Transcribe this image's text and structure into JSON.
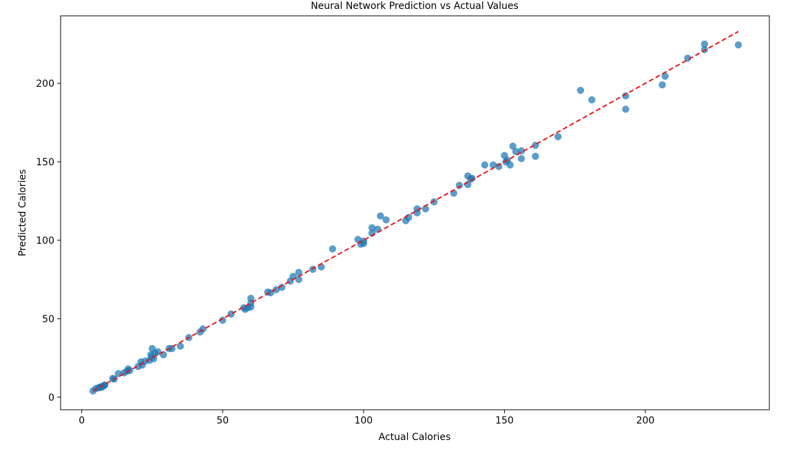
{
  "chart_data": {
    "type": "scatter",
    "title": "Neural Network Prediction vs Actual Values",
    "xlabel": "Actual Calories",
    "ylabel": "Predicted Calories",
    "xlim": [
      -7.5,
      244
    ],
    "ylim": [
      -8,
      243
    ],
    "xticks": [
      0,
      50,
      100,
      150,
      200
    ],
    "yticks": [
      0,
      50,
      100,
      150,
      200
    ],
    "grid": false,
    "colors": {
      "points": "#1f77b4",
      "ideal_line": "#e8161b"
    },
    "reference_line": {
      "style": "dashed",
      "from": [
        4,
        4
      ],
      "to": [
        233,
        233
      ]
    },
    "points": [
      [
        4,
        4
      ],
      [
        5,
        5.5
      ],
      [
        6,
        6
      ],
      [
        6.5,
        6.5
      ],
      [
        7,
        6.3
      ],
      [
        7.5,
        7
      ],
      [
        8,
        7.5
      ],
      [
        8.2,
        7.8
      ],
      [
        11,
        12
      ],
      [
        11.5,
        11.5
      ],
      [
        13,
        15
      ],
      [
        15,
        15.5
      ],
      [
        16,
        16.5
      ],
      [
        16.5,
        18
      ],
      [
        17,
        17
      ],
      [
        20,
        19.5
      ],
      [
        21,
        22.5
      ],
      [
        21.5,
        20.5
      ],
      [
        22.5,
        23
      ],
      [
        24,
        23.5
      ],
      [
        24.5,
        27
      ],
      [
        25,
        31
      ],
      [
        25,
        26
      ],
      [
        25.5,
        24.5
      ],
      [
        26,
        28
      ],
      [
        27,
        29
      ],
      [
        29,
        27
      ],
      [
        31,
        31
      ],
      [
        32,
        31
      ],
      [
        35,
        32.5
      ],
      [
        38,
        38
      ],
      [
        42,
        41.5
      ],
      [
        43,
        43.5
      ],
      [
        50,
        49
      ],
      [
        53,
        53
      ],
      [
        57.5,
        57
      ],
      [
        58,
        56
      ],
      [
        59,
        57
      ],
      [
        60,
        63
      ],
      [
        60,
        60
      ],
      [
        60,
        57.5
      ],
      [
        66,
        67
      ],
      [
        67,
        66.5
      ],
      [
        69,
        68.5
      ],
      [
        71,
        70
      ],
      [
        74,
        74
      ],
      [
        75,
        77
      ],
      [
        77,
        79.5
      ],
      [
        77,
        75
      ],
      [
        82,
        81.5
      ],
      [
        85,
        83
      ],
      [
        89,
        94.5
      ],
      [
        98,
        100.5
      ],
      [
        99,
        97.5
      ],
      [
        100,
        99.5
      ],
      [
        100,
        98
      ],
      [
        103,
        108
      ],
      [
        103,
        104.5
      ],
      [
        105,
        107
      ],
      [
        106,
        115.5
      ],
      [
        108,
        113
      ],
      [
        115,
        112.5
      ],
      [
        116,
        114.5
      ],
      [
        119,
        117.5
      ],
      [
        119,
        120
      ],
      [
        122,
        120
      ],
      [
        125,
        124.5
      ],
      [
        132,
        130
      ],
      [
        134,
        135
      ],
      [
        137,
        141
      ],
      [
        137,
        135.5
      ],
      [
        138,
        139
      ],
      [
        138.5,
        139.5
      ],
      [
        143,
        148
      ],
      [
        146,
        148
      ],
      [
        148,
        147
      ],
      [
        150,
        154
      ],
      [
        150.5,
        150
      ],
      [
        151,
        151
      ],
      [
        152,
        148
      ],
      [
        153,
        160
      ],
      [
        154,
        156.5
      ],
      [
        156,
        157
      ],
      [
        156,
        152
      ],
      [
        161,
        160.5
      ],
      [
        161,
        153.5
      ],
      [
        169,
        166
      ],
      [
        177,
        195.5
      ],
      [
        181,
        189.5
      ],
      [
        193,
        192
      ],
      [
        193,
        183.5
      ],
      [
        206,
        199
      ],
      [
        207,
        204.5
      ],
      [
        215,
        216
      ],
      [
        221,
        225
      ],
      [
        221,
        221.5
      ],
      [
        233,
        224.5
      ]
    ]
  }
}
